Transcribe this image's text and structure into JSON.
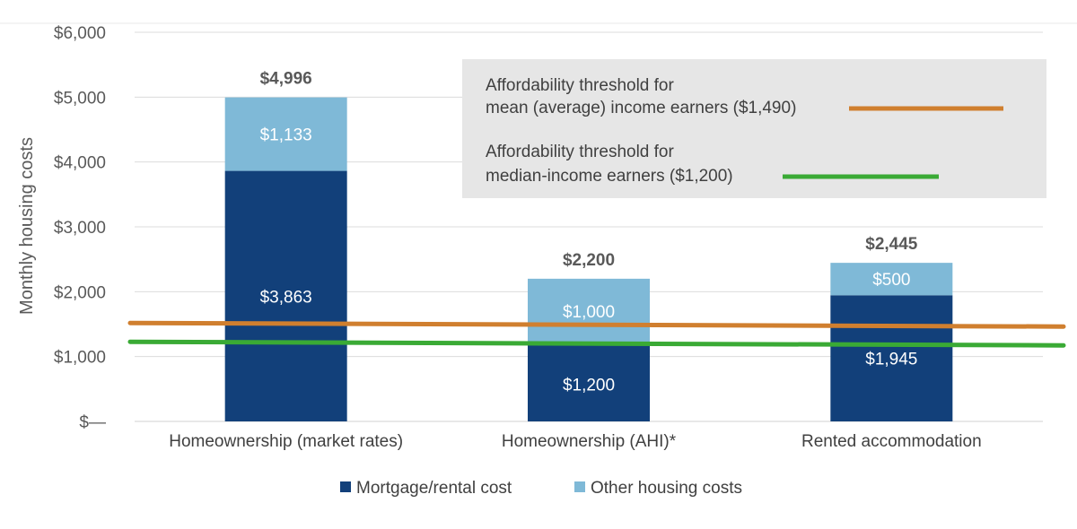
{
  "chart_data": {
    "type": "bar",
    "stacked": true,
    "ylabel": "Monthly housing costs",
    "ylim": [
      0,
      6000
    ],
    "y_tick_labels": [
      "$—",
      "$1,000",
      "$2,000",
      "$3,000",
      "$4,000",
      "$5,000",
      "$6,000"
    ],
    "y_tick_values": [
      0,
      1000,
      2000,
      3000,
      4000,
      5000,
      6000
    ],
    "grid": true,
    "categories": [
      "Homeownership (market rates)",
      "Homeownership (AHI)*",
      "Rented accommodation"
    ],
    "series": [
      {
        "name": "Mortgage/rental cost",
        "color": "#12407a",
        "label_color": "#ffffff",
        "values": [
          3863,
          1200,
          1945
        ],
        "labels": [
          "$3,863",
          "$1,200",
          "$1,945"
        ]
      },
      {
        "name": "Other housing costs",
        "color": "#7fb9d7",
        "label_color": "#ffffff",
        "values": [
          1133,
          1000,
          500
        ],
        "labels": [
          "$1,133",
          "$1,000",
          "$500"
        ]
      }
    ],
    "totals": [
      4996,
      2200,
      2445
    ],
    "total_labels": [
      "$4,996",
      "$2,200",
      "$2,445"
    ],
    "thresholds": [
      {
        "value": 1490,
        "color": "#d07f2f",
        "label_lines": [
          "Affordability threshold for",
          "mean (average) income earners ($1,490)"
        ]
      },
      {
        "value": 1200,
        "color": "#3aaa35",
        "label_lines": [
          "Affordability threshold for",
          "median-income earners ($1,200)"
        ]
      }
    ],
    "legend_position": "bottom",
    "callout_box_color": "#e6e6e6"
  }
}
